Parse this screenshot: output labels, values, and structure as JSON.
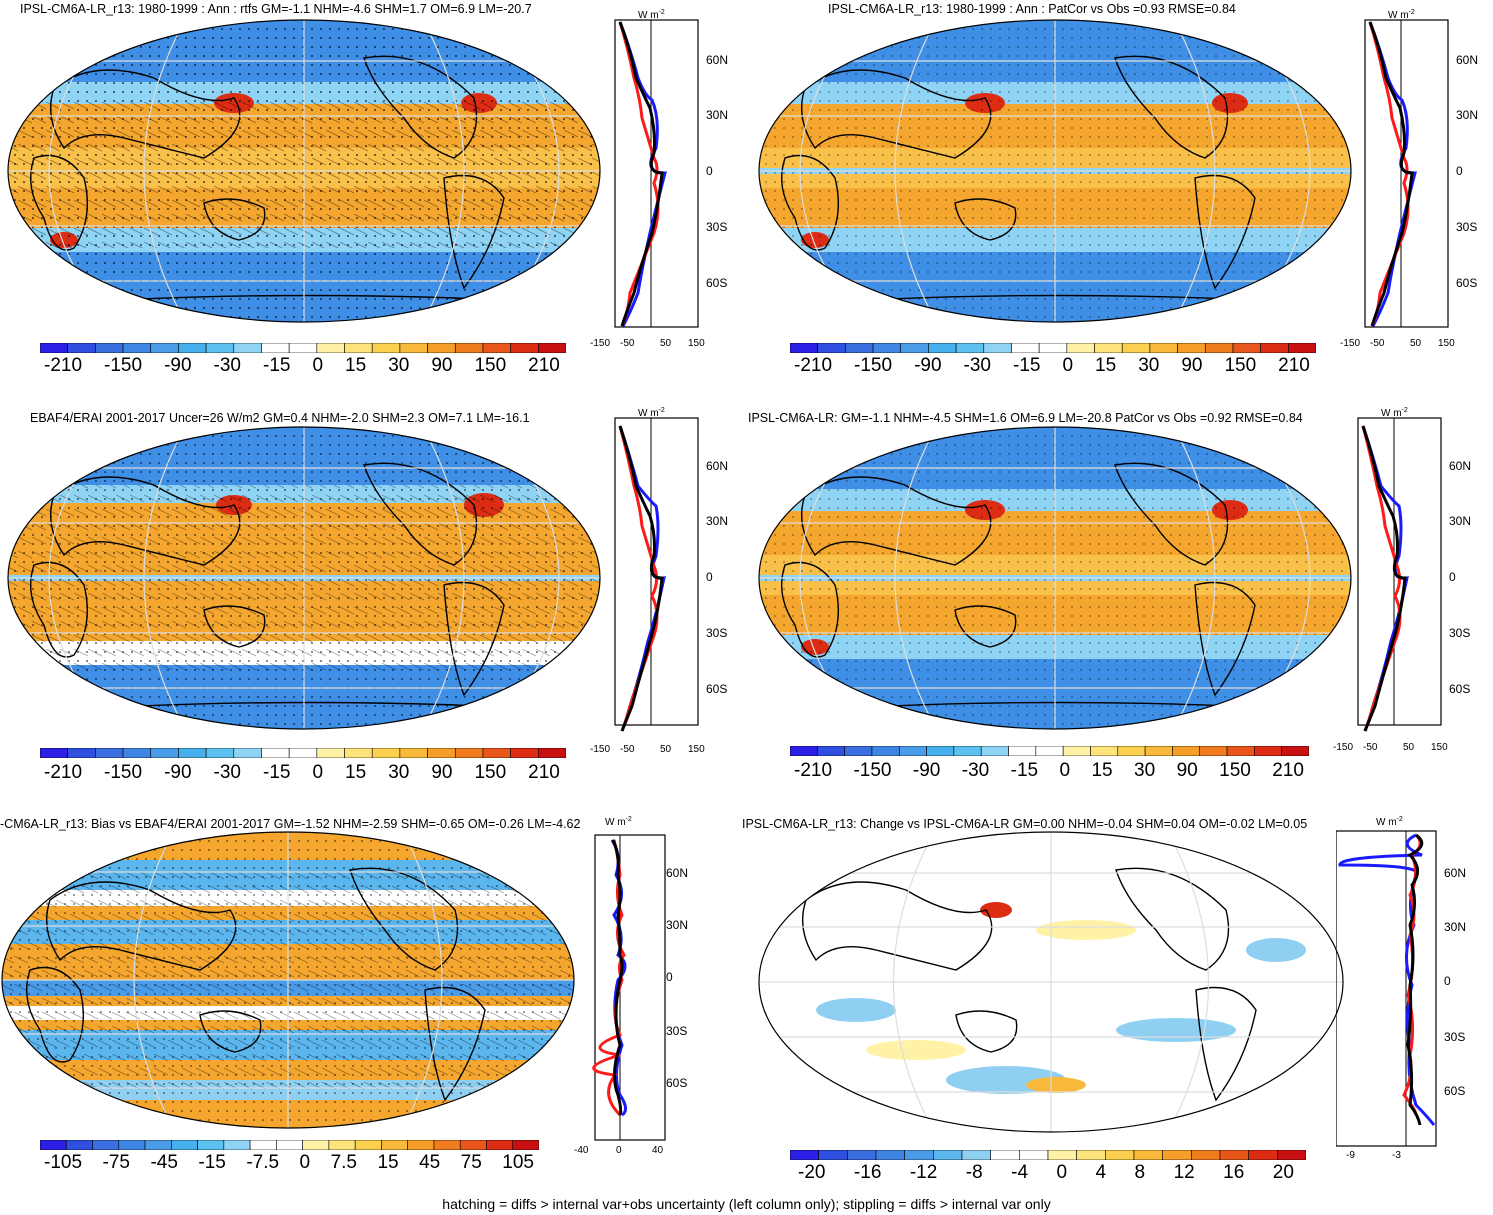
{
  "footnote": "hatching = diffs > internal var+obs uncertainty (left column only); stippling = diffs > internal var only",
  "units_label": "W m",
  "units_exp": "-2",
  "lat_labels": [
    "60N",
    "30N",
    "0",
    "30S",
    "60S"
  ],
  "palettes": {
    "main": [
      "#2b1fe6",
      "#2f4fe0",
      "#3a6ee0",
      "#3f85e4",
      "#4a9be8",
      "#45b0ec",
      "#5bc2f0",
      "#8fd4f4",
      "#ffffff",
      "#ffffff",
      "#fff2a6",
      "#fde37a",
      "#fbd04e",
      "#f9b93a",
      "#f59f2a",
      "#f07c1e",
      "#e8561a",
      "#dc2c14",
      "#c81010"
    ],
    "change": [
      "#2b1fe6",
      "#2f4fe0",
      "#3a6ee0",
      "#3f85e4",
      "#4a9be8",
      "#5bb6ee",
      "#8fd0f2",
      "#ffffff",
      "#ffffff",
      "#fff2a6",
      "#fde37a",
      "#fbd04e",
      "#f9b93a",
      "#f59f2a",
      "#f07c1e",
      "#e8561a",
      "#dc2c14",
      "#c81010"
    ]
  },
  "panels": [
    {
      "id": "p1",
      "title": "IPSL-CM6A-LR_r13: 1980-1999 : Ann : rtfs GM=-1.1 NHM=-4.6 SHM=1.7 OM=6.9 LM=-20.7",
      "cbar_labels": [
        "-210",
        "-150",
        "-90",
        "-30",
        "-15",
        "0",
        "15",
        "30",
        "90",
        "150",
        "210"
      ],
      "x_ticks": [
        "-150",
        "-50",
        "50",
        "150"
      ]
    },
    {
      "id": "p2",
      "title": "IPSL-CM6A-LR_r13: 1980-1999 : Ann : PatCor vs Obs =0.93 RMSE=0.84",
      "cbar_labels": [
        "-210",
        "-150",
        "-90",
        "-30",
        "-15",
        "0",
        "15",
        "30",
        "90",
        "150",
        "210"
      ],
      "x_ticks": [
        "-150",
        "-50",
        "50",
        "150"
      ]
    },
    {
      "id": "p3",
      "title": "EBAF4/ERAI 2001-2017 Uncer=26 W/m2 GM=0.4 NHM=-2.0 SHM=2.3 OM=7.1 LM=-16.1",
      "cbar_labels": [
        "-210",
        "-150",
        "-90",
        "-30",
        "-15",
        "0",
        "15",
        "30",
        "90",
        "150",
        "210"
      ],
      "x_ticks": [
        "-150",
        "-50",
        "50",
        "150"
      ]
    },
    {
      "id": "p4",
      "title": "IPSL-CM6A-LR: GM=-1.1 NHM=-4.5 SHM=1.6 OM=6.9 LM=-20.8 PatCor vs Obs =0.92 RMSE=0.84",
      "cbar_labels": [
        "-210",
        "-150",
        "-90",
        "-30",
        "-15",
        "0",
        "15",
        "30",
        "90",
        "150",
        "210"
      ],
      "x_ticks": [
        "-150",
        "-50",
        "50",
        "150"
      ]
    },
    {
      "id": "p5",
      "title": "-CM6A-LR_r13: Bias vs EBAF4/ERAI 2001-2017 GM=-1.52 NHM=-2.59 SHM=-0.65 OM=-0.26 LM=-4.62",
      "cbar_labels": [
        "-105",
        "-75",
        "-45",
        "-15",
        "-7.5",
        "0",
        "7.5",
        "15",
        "45",
        "75",
        "105"
      ],
      "x_ticks": [
        "-40",
        "0",
        "40"
      ]
    },
    {
      "id": "p6",
      "title": "IPSL-CM6A-LR_r13: Change vs IPSL-CM6A-LR GM=0.00 NHM=-0.04 SHM=0.04 OM=-0.02 LM=0.05",
      "cbar_labels": [
        "-20",
        "-16",
        "-12",
        "-8",
        "-4",
        "0",
        "4",
        "8",
        "12",
        "16",
        "20"
      ],
      "x_ticks": [
        "-9",
        "-3"
      ]
    }
  ]
}
